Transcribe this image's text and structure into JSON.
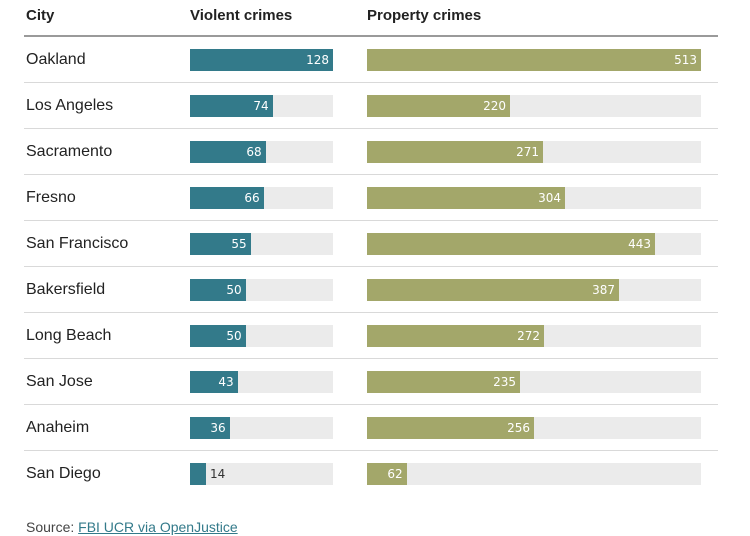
{
  "headers": {
    "city": "City",
    "violent": "Violent crimes",
    "property": "Property crimes"
  },
  "chart_data": {
    "type": "bar",
    "orientation": "horizontal",
    "categories": [
      "Oakland",
      "Los Angeles",
      "Sacramento",
      "Fresno",
      "San Francisco",
      "Bakersfield",
      "Long Beach",
      "San Jose",
      "Anaheim",
      "San Diego"
    ],
    "series": [
      {
        "name": "Violent crimes",
        "color": "#337a8a",
        "max": 128,
        "values": [
          128,
          74,
          68,
          66,
          55,
          50,
          50,
          43,
          36,
          14
        ]
      },
      {
        "name": "Property crimes",
        "color": "#a3a76a",
        "max": 513,
        "values": [
          513,
          220,
          271,
          304,
          443,
          387,
          272,
          235,
          256,
          62
        ]
      }
    ],
    "grid": false,
    "legend": "none"
  },
  "source": {
    "prefix": "Source: ",
    "link_text": "FBI UCR via OpenJustice"
  }
}
